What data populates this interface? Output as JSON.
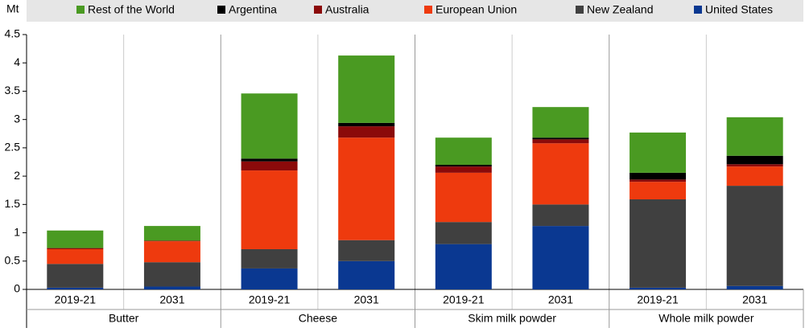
{
  "chart_data": {
    "type": "stacked-bar",
    "y_label": "Mt",
    "categories": [
      "2019-21",
      "2031",
      "2019-21",
      "2031",
      "2019-21",
      "2031",
      "2019-21",
      "2031"
    ],
    "groups": [
      "Butter",
      "Cheese",
      "Skim milk powder",
      "Whole milk powder"
    ],
    "series": [
      {
        "name": "Rest of the World",
        "color": "#4a9a22",
        "values": [
          0.31,
          0.26,
          1.15,
          1.19,
          0.48,
          0.54,
          0.71,
          0.68
        ]
      },
      {
        "name": "Argentina",
        "color": "#000000",
        "values": [
          0.0,
          0.0,
          0.05,
          0.06,
          0.03,
          0.03,
          0.12,
          0.15
        ]
      },
      {
        "name": "Australia",
        "color": "#8b0a0a",
        "values": [
          0.02,
          0.01,
          0.16,
          0.2,
          0.11,
          0.07,
          0.04,
          0.04
        ]
      },
      {
        "name": "European Union",
        "color": "#ee3a0e",
        "values": [
          0.26,
          0.37,
          1.39,
          1.81,
          0.87,
          1.08,
          0.31,
          0.34
        ]
      },
      {
        "name": "New Zealand",
        "color": "#404040",
        "values": [
          0.42,
          0.43,
          0.34,
          0.37,
          0.39,
          0.38,
          1.56,
          1.77
        ]
      },
      {
        "name": "United States",
        "color": "#0a3891",
        "values": [
          0.03,
          0.05,
          0.37,
          0.5,
          0.8,
          1.12,
          0.03,
          0.06
        ]
      }
    ],
    "ylim": [
      0,
      4.5
    ],
    "yticks": [
      0,
      0.5,
      1,
      1.5,
      2,
      2.5,
      3,
      3.5,
      4,
      4.5
    ]
  }
}
